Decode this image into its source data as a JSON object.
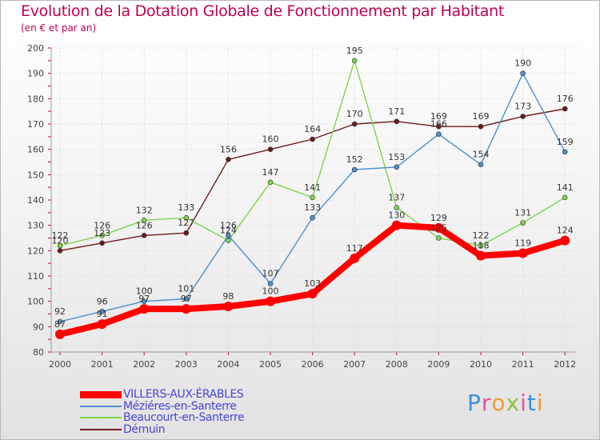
{
  "page": {
    "title": "Evolution de la Dotation Globale de Fonctionnement par Habitant",
    "subtitle": "(en € et par an)"
  },
  "brand": {
    "name": "Proxiti",
    "letters": [
      "P",
      "r",
      "o",
      "x",
      "i",
      "t",
      "i"
    ],
    "letter_colors": [
      "#3c8fdc",
      "#e94f9c",
      "#f39a2c",
      "#8cc43c",
      "#e94f9c",
      "#3c8fdc",
      "#f39a2c"
    ]
  },
  "chart_data": {
    "type": "line",
    "title": "Evolution de la Dotation Globale de Fonctionnement par Habitant",
    "subtitle": "(en € et par an)",
    "xlabel": "",
    "ylabel": "",
    "x": [
      "2000",
      "2001",
      "2002",
      "2003",
      "2004",
      "2005",
      "2006",
      "2007",
      "2008",
      "2009",
      "2010",
      "2011",
      "2012"
    ],
    "ylim": [
      80,
      200
    ],
    "yticks": [
      80,
      90,
      100,
      110,
      120,
      130,
      140,
      150,
      160,
      170,
      180,
      190,
      200
    ],
    "grid": true,
    "legend_position": "bottom-left",
    "series": [
      {
        "name": "Démuin",
        "color": "#6e1a1a",
        "values": [
          120,
          123,
          126,
          127,
          156,
          160,
          164,
          170,
          171,
          169,
          169,
          173,
          176
        ],
        "labels": [
          "120",
          "123",
          "126",
          "127",
          "156",
          "160",
          "164",
          "170",
          "171",
          "169",
          "169",
          "173",
          "176"
        ]
      },
      {
        "name": "Beaucourt-en-Santerre",
        "color": "#7fd44c",
        "values": [
          122,
          126,
          132,
          133,
          124,
          147,
          141,
          195,
          137,
          125,
          122,
          131,
          141
        ],
        "labels": [
          "122",
          "126",
          "132",
          "133",
          "124",
          "147",
          "141",
          "195",
          "137",
          "125",
          "122",
          "131",
          "141"
        ]
      },
      {
        "name": "Méziéres-en-Santerre",
        "color": "#4a8fcf",
        "values": [
          92,
          96,
          100,
          101,
          126,
          107,
          133,
          152,
          153,
          166,
          154,
          190,
          159
        ],
        "labels": [
          "92",
          "96",
          "100",
          "101",
          "126",
          "107",
          "133",
          "152",
          "153",
          "166",
          "154",
          "190",
          "159"
        ]
      },
      {
        "name": "VILLERS-AUX-ÉRABLES",
        "color": "#ff0000",
        "values": [
          87,
          91,
          97,
          97,
          98,
          100,
          103,
          117,
          130,
          129,
          118,
          119,
          124
        ],
        "labels": [
          "87",
          "91",
          "97",
          "97",
          "98",
          "100",
          "103",
          "117",
          "130",
          "129",
          "118",
          "119",
          "124"
        ]
      }
    ],
    "legend": [
      {
        "name": "VILLERS-AUX-ÉRABLES",
        "color": "#ff0000"
      },
      {
        "name": "Méziéres-en-Santerre",
        "color": "#4a8fcf"
      },
      {
        "name": "Beaucourt-en-Santerre",
        "color": "#7fd44c"
      },
      {
        "name": "Démuin",
        "color": "#6e1a1a"
      }
    ]
  }
}
